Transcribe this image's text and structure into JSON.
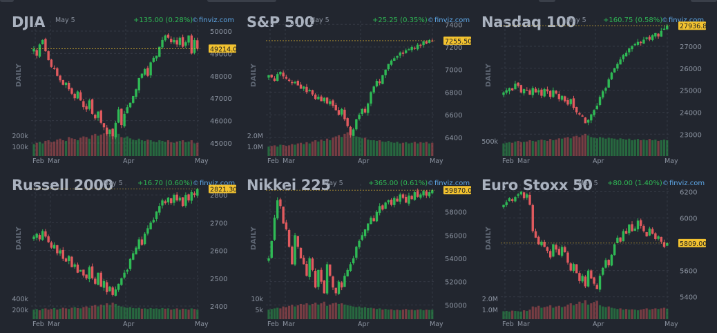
{
  "brand": "finviz.com",
  "colors": {
    "up": "#2fba55",
    "down": "#e05a5e",
    "last_badge": "#f2c230",
    "grid": "#343944",
    "axis_text": "#8d95a2"
  },
  "icons": {
    "brand": "finviz-logo-icon"
  },
  "panels": [
    {
      "title": "DJIA",
      "date": "May 5",
      "change": "+135.00 (0.28%)",
      "period_label": "DAILY",
      "last_value": "49214.0",
      "y_ticks": [
        "50000",
        "49000",
        "48000",
        "47000",
        "46000",
        "45000"
      ],
      "vol_ticks": [
        "200k",
        "100k"
      ],
      "x_ticks": [
        "Feb",
        "Mar",
        "Apr",
        "May"
      ]
    },
    {
      "title": "S&P 500",
      "date": "May 5",
      "change": "+25.25 (0.35%)",
      "period_label": "DAILY",
      "last_value": "7255.50",
      "y_ticks": [
        "7400",
        "7200",
        "7000",
        "6800",
        "6600",
        "6400"
      ],
      "vol_ticks": [
        "2.0M",
        "1.0M"
      ],
      "x_ticks": [
        "Feb",
        "Mar",
        "Apr",
        "May"
      ]
    },
    {
      "title": "Nasdaq 100",
      "date": "May 5",
      "change": "+160.75 (0.58%)",
      "period_label": "DAILY",
      "last_value": "27936.8",
      "y_ticks": [
        "27000",
        "26000",
        "25000",
        "24000",
        "23000"
      ],
      "vol_ticks": [
        "500k"
      ],
      "x_ticks": [
        "Feb",
        "Mar",
        "Apr",
        "May"
      ]
    },
    {
      "title": "Russell 2000",
      "date": "May 5",
      "change": "+16.70 (0.60%)",
      "period_label": "DAILY",
      "last_value": "2821.30",
      "y_ticks": [
        "2800",
        "2700",
        "2600",
        "2500",
        "2400"
      ],
      "vol_ticks": [
        "400k",
        "200k"
      ],
      "x_ticks": [
        "Feb",
        "Mar",
        "Apr",
        "May"
      ]
    },
    {
      "title": "Nikkei 225",
      "date": "May 5",
      "change": "+365.00 (0.61%)",
      "period_label": "DAILY",
      "last_value": "59870.0",
      "y_ticks": [
        "58000",
        "56000",
        "54000",
        "52000",
        "50000"
      ],
      "vol_ticks": [
        "10k",
        "5k"
      ],
      "x_ticks": [
        "Feb",
        "Mar",
        "Apr",
        "May"
      ]
    },
    {
      "title": "Euro Stoxx 50",
      "date": "May 5",
      "change": "+80.00 (1.40%)",
      "period_label": "DAILY",
      "last_value": "5809.00",
      "y_ticks": [
        "6200",
        "6000",
        "5800",
        "5600",
        "5400"
      ],
      "vol_ticks": [
        "2.0M",
        "1.0M"
      ],
      "x_ticks": [
        "Feb",
        "Mar",
        "Apr",
        "May"
      ]
    }
  ],
  "chart_data": [
    {
      "type": "candlestick",
      "title": "DJIA",
      "ylim": [
        45000,
        50400
      ],
      "vol_max": 300000,
      "last": 49214,
      "x_ticks": [
        "Feb",
        "Mar",
        "Apr",
        "May"
      ],
      "path": [
        49200,
        48900,
        49400,
        49600,
        49100,
        48700,
        48400,
        48300,
        48000,
        47800,
        47600,
        47700,
        47400,
        47200,
        47000,
        47300,
        46900,
        46600,
        46500,
        46900,
        46300,
        46100,
        46400,
        45900,
        45700,
        45400,
        45600,
        45300,
        45900,
        46500,
        45800,
        46300,
        46600,
        46800,
        47100,
        47400,
        47900,
        48100,
        48300,
        48000,
        48600,
        48800,
        48900,
        49300,
        49600,
        49800,
        49700,
        49500,
        49600,
        49400,
        49700,
        49300,
        49500,
        49800,
        49000,
        49600,
        49214
      ],
      "vol": [
        0.38,
        0.42,
        0.45,
        0.4,
        0.48,
        0.5,
        0.44,
        0.46,
        0.52,
        0.55,
        0.5,
        0.48,
        0.6,
        0.56,
        0.54,
        0.5,
        0.58,
        0.62,
        0.6,
        0.55,
        0.66,
        0.7,
        0.64,
        0.68,
        0.72,
        0.74,
        0.66,
        0.78,
        0.72,
        0.7,
        0.6,
        0.58,
        0.62,
        0.56,
        0.52,
        0.5,
        0.55,
        0.5,
        0.48,
        0.52,
        0.5,
        0.46,
        0.44,
        0.5,
        0.48,
        0.45,
        0.5,
        0.44,
        0.42,
        0.46,
        0.48,
        0.5,
        0.44,
        0.46,
        0.5,
        0.4,
        0.42
      ]
    },
    {
      "type": "candlestick",
      "title": "S&P 500",
      "ylim": [
        6350,
        7420
      ],
      "vol_max": 3000000,
      "last": 7255.5,
      "x_ticks": [
        "Feb",
        "Mar",
        "Apr",
        "May"
      ],
      "path": [
        6950,
        6930,
        6900,
        6960,
        6980,
        6940,
        6920,
        6900,
        6880,
        6890,
        6860,
        6830,
        6850,
        6800,
        6820,
        6780,
        6740,
        6760,
        6720,
        6750,
        6700,
        6720,
        6680,
        6640,
        6600,
        6650,
        6560,
        6500,
        6420,
        6470,
        6560,
        6600,
        6650,
        6620,
        6700,
        6800,
        6850,
        6900,
        6880,
        6950,
        7000,
        7050,
        7080,
        7100,
        7120,
        7150,
        7140,
        7170,
        7180,
        7200,
        7190,
        7220,
        7210,
        7250,
        7230,
        7260,
        7255
      ],
      "vol": [
        0.3,
        0.32,
        0.34,
        0.3,
        0.36,
        0.35,
        0.32,
        0.34,
        0.38,
        0.36,
        0.4,
        0.42,
        0.38,
        0.44,
        0.4,
        0.46,
        0.5,
        0.46,
        0.52,
        0.48,
        0.55,
        0.5,
        0.58,
        0.62,
        0.66,
        0.6,
        0.7,
        0.75,
        0.8,
        0.7,
        0.62,
        0.6,
        0.56,
        0.58,
        0.52,
        0.5,
        0.5,
        0.48,
        0.5,
        0.46,
        0.45,
        0.48,
        0.44,
        0.42,
        0.45,
        0.4,
        0.42,
        0.44,
        0.4,
        0.42,
        0.45,
        0.4,
        0.44,
        0.42,
        0.45,
        0.4,
        0.42
      ]
    },
    {
      "type": "candlestick",
      "title": "Nasdaq 100",
      "ylim": [
        22600,
        28100
      ],
      "vol_max": 900000,
      "last": 27936.8,
      "x_ticks": [
        "Feb",
        "Mar",
        "Apr",
        "May"
      ],
      "path": [
        24900,
        25000,
        25100,
        25000,
        25300,
        25200,
        24900,
        25050,
        25000,
        24800,
        25100,
        24900,
        25000,
        24750,
        25050,
        24950,
        24700,
        25000,
        24850,
        24600,
        24750,
        24500,
        24350,
        24600,
        24200,
        24000,
        23900,
        23800,
        23500,
        23650,
        23900,
        24100,
        24300,
        24700,
        24950,
        25100,
        25500,
        25800,
        26000,
        26200,
        26400,
        26600,
        26700,
        26900,
        27000,
        27100,
        27200,
        27150,
        27300,
        27400,
        27300,
        27500,
        27600,
        27450,
        27700,
        27800,
        27937
      ],
      "vol": [
        0.4,
        0.42,
        0.44,
        0.42,
        0.46,
        0.48,
        0.44,
        0.45,
        0.46,
        0.5,
        0.48,
        0.46,
        0.5,
        0.52,
        0.5,
        0.48,
        0.54,
        0.5,
        0.52,
        0.56,
        0.55,
        0.58,
        0.6,
        0.56,
        0.62,
        0.64,
        0.6,
        0.66,
        0.7,
        0.65,
        0.6,
        0.58,
        0.56,
        0.6,
        0.58,
        0.55,
        0.58,
        0.56,
        0.55,
        0.52,
        0.56,
        0.54,
        0.52,
        0.55,
        0.5,
        0.52,
        0.54,
        0.5,
        0.52,
        0.5,
        0.54,
        0.5,
        0.52,
        0.48,
        0.5,
        0.52,
        0.5
      ]
    },
    {
      "type": "candlestick",
      "title": "Russell 2000",
      "ylim": [
        2400,
        2835
      ],
      "vol_max": 900000,
      "last": 2821.3,
      "x_ticks": [
        "Feb",
        "Mar",
        "Apr",
        "May"
      ],
      "path": [
        2650,
        2660,
        2640,
        2670,
        2650,
        2630,
        2610,
        2620,
        2590,
        2600,
        2570,
        2560,
        2580,
        2540,
        2550,
        2520,
        2530,
        2510,
        2500,
        2540,
        2500,
        2480,
        2520,
        2470,
        2490,
        2450,
        2470,
        2440,
        2460,
        2480,
        2500,
        2520,
        2530,
        2570,
        2590,
        2610,
        2640,
        2620,
        2660,
        2680,
        2700,
        2710,
        2740,
        2760,
        2780,
        2770,
        2790,
        2770,
        2800,
        2780,
        2790,
        2760,
        2800,
        2780,
        2810,
        2800,
        2821
      ],
      "vol": [
        0.3,
        0.32,
        0.28,
        0.33,
        0.34,
        0.3,
        0.32,
        0.35,
        0.3,
        0.33,
        0.36,
        0.34,
        0.32,
        0.36,
        0.38,
        0.35,
        0.34,
        0.38,
        0.4,
        0.36,
        0.42,
        0.45,
        0.4,
        0.46,
        0.44,
        0.5,
        0.45,
        0.52,
        0.48,
        0.42,
        0.4,
        0.38,
        0.36,
        0.38,
        0.35,
        0.34,
        0.36,
        0.33,
        0.34,
        0.32,
        0.35,
        0.33,
        0.34,
        0.32,
        0.35,
        0.33,
        0.34,
        0.3,
        0.32,
        0.34,
        0.3,
        0.33,
        0.32,
        0.3,
        0.34,
        0.32,
        0.3
      ]
    },
    {
      "type": "candlestick",
      "title": "Nikkei 225",
      "ylim": [
        49900,
        60300
      ],
      "vol_max": 22000,
      "last": 59870,
      "x_ticks": [
        "Feb",
        "Mar",
        "Apr",
        "May"
      ],
      "path": [
        54000,
        55500,
        57500,
        59000,
        58500,
        57000,
        56500,
        55000,
        53500,
        56000,
        55000,
        54000,
        53500,
        52500,
        54000,
        53000,
        51500,
        53000,
        52000,
        51000,
        53500,
        52500,
        51500,
        51000,
        52000,
        51500,
        52500,
        53000,
        53500,
        54000,
        55000,
        55500,
        56000,
        56500,
        57000,
        57500,
        57200,
        58000,
        58500,
        58200,
        58800,
        59000,
        58600,
        59200,
        58900,
        59500,
        59200,
        58800,
        59400,
        59100,
        59700,
        59300,
        59500,
        59800,
        59400,
        59700,
        59870
      ],
      "vol": [
        0.3,
        0.32,
        0.34,
        0.36,
        0.34,
        0.4,
        0.38,
        0.42,
        0.45,
        0.4,
        0.44,
        0.48,
        0.46,
        0.5,
        0.44,
        0.48,
        0.52,
        0.46,
        0.5,
        0.55,
        0.42,
        0.46,
        0.5,
        0.52,
        0.48,
        0.5,
        0.46,
        0.44,
        0.42,
        0.4,
        0.38,
        0.4,
        0.36,
        0.38,
        0.35,
        0.36,
        0.34,
        0.32,
        0.34,
        0.3,
        0.32,
        0.3,
        0.31,
        0.28,
        0.3,
        0.28,
        0.3,
        0.32,
        0.29,
        0.3,
        0.28,
        0.3,
        0.31,
        0.28,
        0.3,
        0.29,
        0.3
      ]
    },
    {
      "type": "candlestick",
      "title": "Euro Stoxx 50",
      "ylim": [
        5330,
        6250
      ],
      "vol_max": 3100000,
      "last": 5809,
      "x_ticks": [
        "Feb",
        "Mar",
        "Apr",
        "May"
      ],
      "path": [
        6100,
        6120,
        6150,
        6130,
        6160,
        6180,
        6200,
        6150,
        6180,
        6100,
        5900,
        5850,
        5800,
        5820,
        5780,
        5750,
        5700,
        5800,
        5760,
        5720,
        5780,
        5740,
        5660,
        5600,
        5650,
        5580,
        5520,
        5560,
        5480,
        5600,
        5540,
        5500,
        5460,
        5560,
        5620,
        5680,
        5640,
        5720,
        5800,
        5850,
        5820,
        5900,
        5880,
        5950,
        5900,
        5920,
        5980,
        5940,
        5900,
        5860,
        5920,
        5880,
        5840,
        5860,
        5820,
        5780,
        5809
      ],
      "vol": [
        0.25,
        0.26,
        0.24,
        0.27,
        0.26,
        0.25,
        0.24,
        0.28,
        0.26,
        0.3,
        0.4,
        0.38,
        0.42,
        0.36,
        0.38,
        0.4,
        0.44,
        0.36,
        0.4,
        0.42,
        0.38,
        0.4,
        0.46,
        0.5,
        0.44,
        0.48,
        0.55,
        0.5,
        0.6,
        0.46,
        0.5,
        0.54,
        0.58,
        0.44,
        0.4,
        0.38,
        0.4,
        0.36,
        0.34,
        0.32,
        0.34,
        0.3,
        0.32,
        0.3,
        0.31,
        0.3,
        0.28,
        0.3,
        0.32,
        0.34,
        0.3,
        0.32,
        0.34,
        0.32,
        0.34,
        0.36,
        0.33
      ]
    }
  ]
}
